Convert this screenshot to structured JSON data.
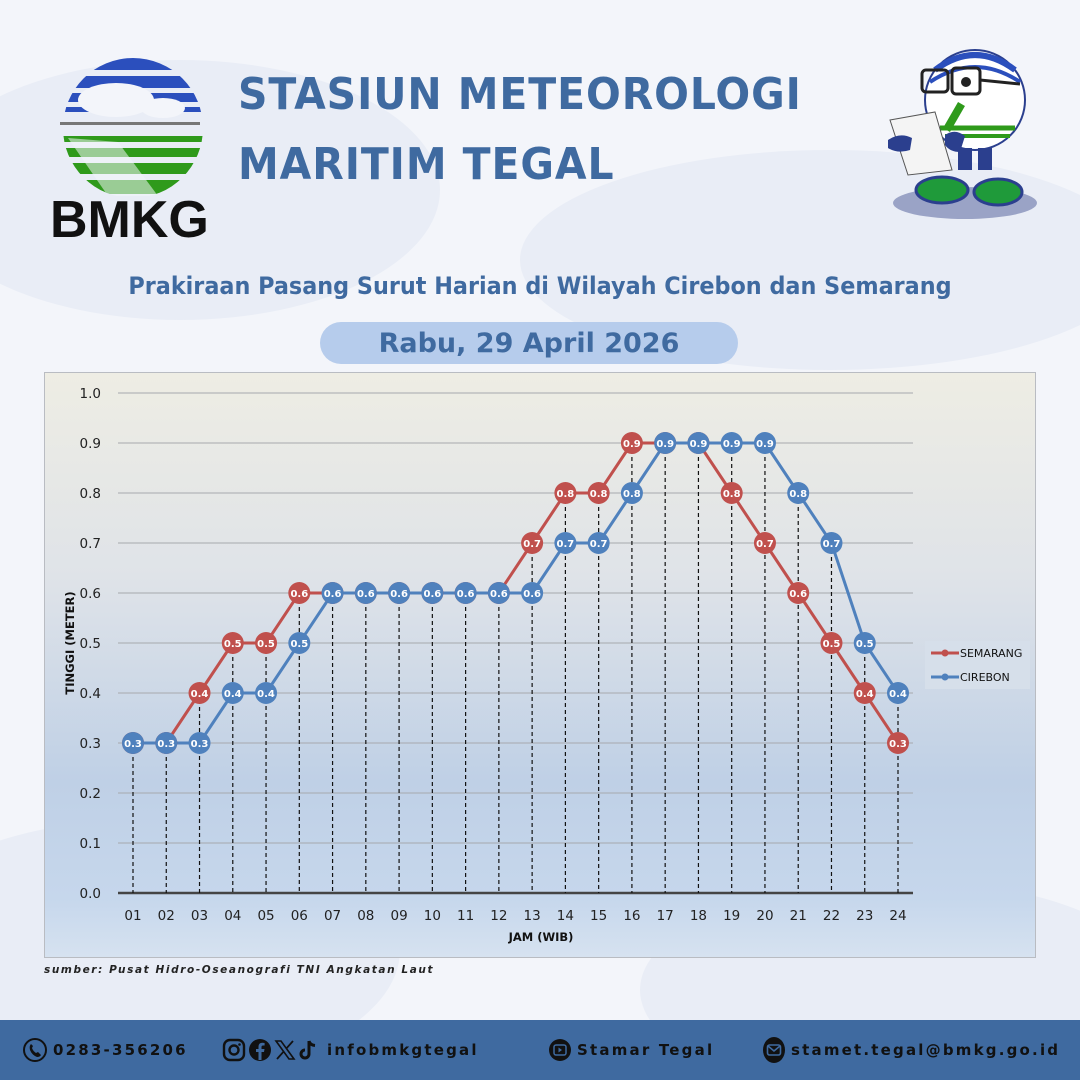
{
  "header": {
    "org_logo_text": "BMKG",
    "title_line1": "STASIUN METEOROLOGI",
    "title_line2": "MARITIM TEGAL",
    "subtitle": "Prakiraan Pasang Surut Harian di Wilayah Cirebon dan Semarang",
    "date": "Rabu, 29 April 2026"
  },
  "source": "sumber: Pusat Hidro-Oseanografi TNI Angkatan Laut",
  "footer": {
    "phone": "0283-356206",
    "social_handle": "infobmkgtegal",
    "youtube": "Stamar Tegal",
    "email": "stamet.tegal@bmkg.go.id"
  },
  "colors": {
    "brand_blue": "#3f6aa0",
    "semarang": "#c0504d",
    "cirebon": "#4f81bd",
    "footer_bg": "#3f6aa0",
    "date_pill": "#b6ccec"
  },
  "chart_data": {
    "type": "line",
    "title": "Prakiraan Pasang Surut Harian di Wilayah Cirebon dan Semarang",
    "xlabel": "JAM (WIB)",
    "ylabel": "TINGGI (METER)",
    "ylim": [
      0.0,
      1.0
    ],
    "yticks": [
      "0.0",
      "0.1",
      "0.2",
      "0.3",
      "0.4",
      "0.5",
      "0.6",
      "0.7",
      "0.8",
      "0.9",
      "1.0"
    ],
    "grid": true,
    "legend_position": "right",
    "categories": [
      "01",
      "02",
      "03",
      "04",
      "05",
      "06",
      "07",
      "08",
      "09",
      "10",
      "11",
      "12",
      "13",
      "14",
      "15",
      "16",
      "17",
      "18",
      "19",
      "20",
      "21",
      "22",
      "23",
      "24"
    ],
    "series": [
      {
        "name": "SEMARANG",
        "color": "#c0504d",
        "values": [
          0.3,
          0.3,
          0.4,
          0.5,
          0.5,
          0.6,
          0.6,
          0.6,
          0.6,
          0.6,
          0.6,
          0.6,
          0.7,
          0.8,
          0.8,
          0.9,
          0.9,
          0.9,
          0.8,
          0.7,
          0.6,
          0.5,
          0.4,
          0.3
        ]
      },
      {
        "name": "CIREBON",
        "color": "#4f81bd",
        "values": [
          0.3,
          0.3,
          0.3,
          0.4,
          0.4,
          0.5,
          0.6,
          0.6,
          0.6,
          0.6,
          0.6,
          0.6,
          0.6,
          0.7,
          0.7,
          0.8,
          0.9,
          0.9,
          0.9,
          0.9,
          0.8,
          0.7,
          0.5,
          0.4
        ]
      }
    ]
  }
}
